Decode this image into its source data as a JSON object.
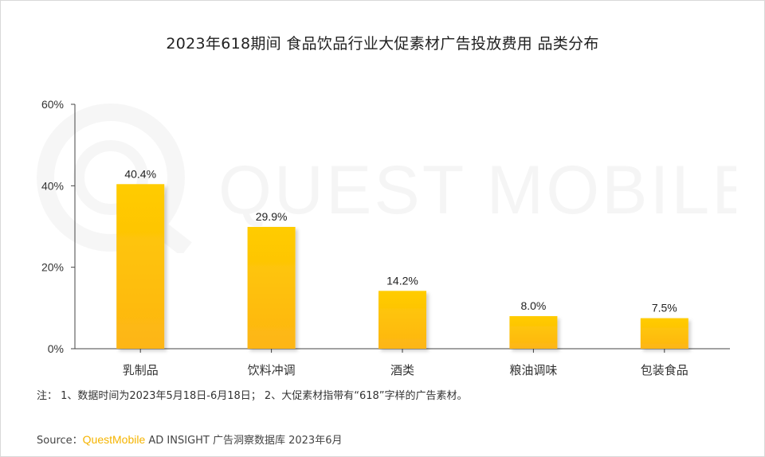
{
  "title": "2023年618期间 食品饮品行业大促素材广告投放费用 品类分布",
  "watermark_text": "QUEST MOBILE",
  "note": "注：  1、数据时间为2023年5月18日-6月18日；  2、大促素材指带有“618”字样的广告素材。",
  "source": {
    "prefix": "Source：",
    "brand": "QuestMobile",
    "suffix": " AD INSIGHT 广告洞察数据库 2023年6月"
  },
  "colors": {
    "bar_top": "#ffcc00",
    "bar_bottom": "#fdb515",
    "axis": "#444444",
    "brand": "#f5b400"
  },
  "chart_data": {
    "type": "bar",
    "title": "2023年618期间 食品饮品行业大促素材广告投放费用 品类分布",
    "categories": [
      "乳制品",
      "饮料冲调",
      "酒类",
      "粮油调味",
      "包装食品"
    ],
    "values": [
      40.4,
      29.9,
      14.2,
      8.0,
      7.5
    ],
    "value_labels": [
      "40.4%",
      "29.9%",
      "14.2%",
      "8.0%",
      "7.5%"
    ],
    "yticks": [
      0,
      20,
      40,
      60
    ],
    "ytick_labels": [
      "0%",
      "20%",
      "40%",
      "60%"
    ],
    "ylim": [
      0,
      60
    ],
    "xlabel": "",
    "ylabel": "",
    "grid": false,
    "legend": "none"
  }
}
